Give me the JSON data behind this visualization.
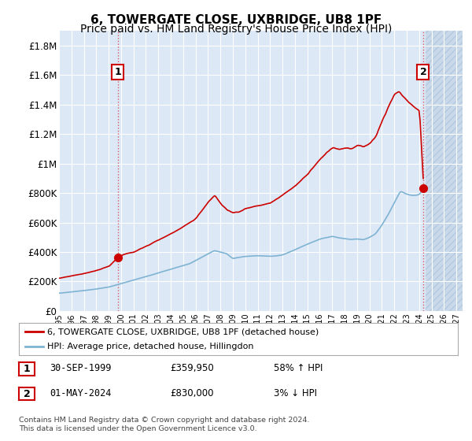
{
  "title": "6, TOWERGATE CLOSE, UXBRIDGE, UB8 1PF",
  "subtitle": "Price paid vs. HM Land Registry's House Price Index (HPI)",
  "ylabel_ticks": [
    "£0",
    "£200K",
    "£400K",
    "£600K",
    "£800K",
    "£1M",
    "£1.2M",
    "£1.4M",
    "£1.6M",
    "£1.8M"
  ],
  "ytick_vals": [
    0,
    200000,
    400000,
    600000,
    800000,
    1000000,
    1200000,
    1400000,
    1600000,
    1800000
  ],
  "ylim": [
    0,
    1900000
  ],
  "xlim_start": 1995.0,
  "xlim_end": 2027.5,
  "xtick_years": [
    1995,
    1996,
    1997,
    1998,
    1999,
    2000,
    2001,
    2002,
    2003,
    2004,
    2005,
    2006,
    2007,
    2008,
    2009,
    2010,
    2011,
    2012,
    2013,
    2014,
    2015,
    2016,
    2017,
    2018,
    2019,
    2020,
    2021,
    2022,
    2023,
    2024,
    2025,
    2026,
    2027
  ],
  "red_line_color": "#cc0000",
  "blue_line_color": "#7fb3d3",
  "sale1_x": 1999.75,
  "sale1_y": 359950,
  "sale1_label": "1",
  "sale2_x": 2024.33,
  "sale2_y": 830000,
  "sale2_label": "2",
  "legend_line1": "6, TOWERGATE CLOSE, UXBRIDGE, UB8 1PF (detached house)",
  "legend_line2": "HPI: Average price, detached house, Hillingdon",
  "table_row1": [
    "1",
    "30-SEP-1999",
    "£359,950",
    "58% ↑ HPI"
  ],
  "table_row2": [
    "2",
    "01-MAY-2024",
    "£830,000",
    "3% ↓ HPI"
  ],
  "footnote": "Contains HM Land Registry data © Crown copyright and database right 2024.\nThis data is licensed under the Open Government Licence v3.0.",
  "bg_color": "#ffffff",
  "plot_bg_color": "#dce8f5",
  "grid_color": "#ffffff",
  "hatch_color": "#c8d8e8",
  "title_fontsize": 11,
  "subtitle_fontsize": 10,
  "axis_fontsize": 8.5,
  "data_end_x": 2024.5
}
